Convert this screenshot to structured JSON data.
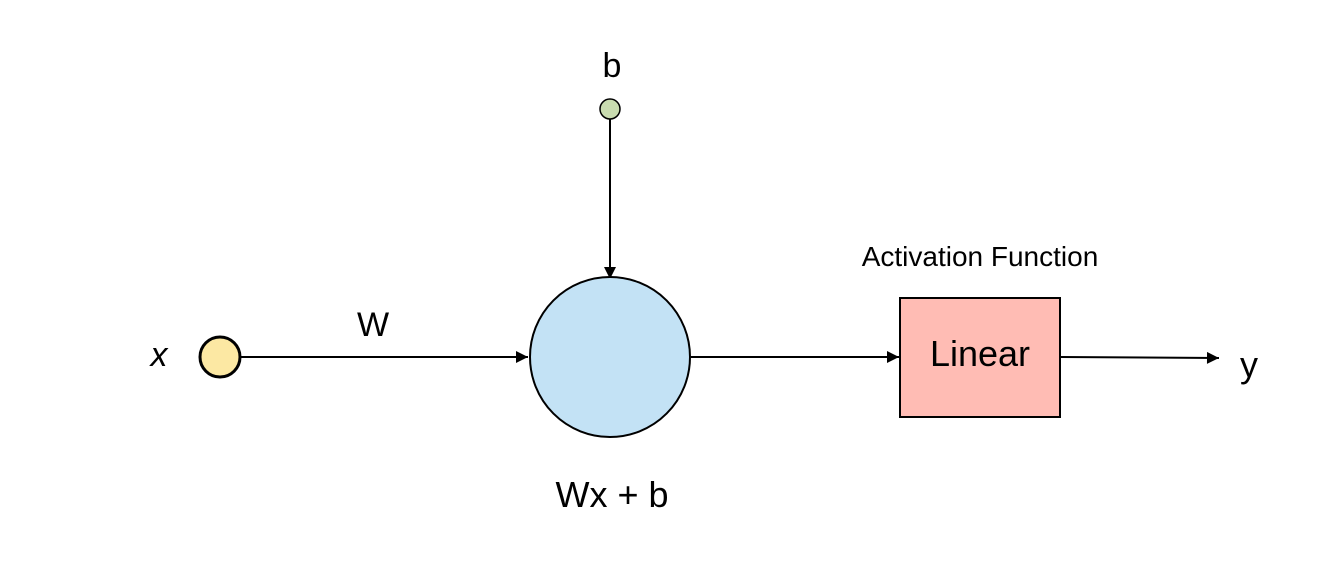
{
  "nodes": {
    "input": {
      "label": "x",
      "fill": "#fce8a3",
      "stroke": "#000000"
    },
    "bias": {
      "label": "b",
      "fill": "#c9dcb0",
      "stroke": "#000000"
    },
    "neuron": {
      "formula": "Wx + b",
      "fill": "#c3e2f5",
      "stroke": "#000000"
    },
    "activation": {
      "title": "Activation Function",
      "label": "Linear",
      "fill": "#ffbcb4",
      "stroke": "#000000"
    },
    "output": {
      "label": "y"
    }
  },
  "edges": {
    "input_to_neuron": {
      "label": "W"
    }
  }
}
